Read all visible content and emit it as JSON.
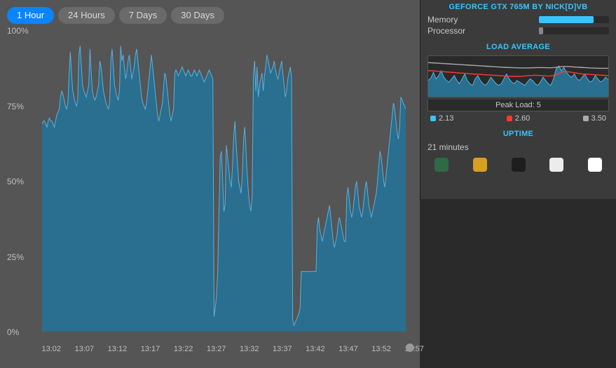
{
  "tabs": {
    "items": [
      "1 Hour",
      "24 Hours",
      "7 Days",
      "30 Days"
    ],
    "active_index": 0,
    "active_bg": "#0a84ff",
    "inactive_bg": "#6a6a6a"
  },
  "main_chart": {
    "type": "area",
    "ylim": [
      0,
      100
    ],
    "yticks": [
      0,
      25,
      50,
      75,
      100
    ],
    "ytick_labels": [
      "0%",
      "25%",
      "50%",
      "75%",
      "100%"
    ],
    "xtick_labels": [
      "13:02",
      "13:07",
      "13:12",
      "13:17",
      "13:22",
      "13:27",
      "13:32",
      "13:37",
      "13:42",
      "13:47",
      "13:52",
      "13:57"
    ],
    "line_color": "#5ab0e0",
    "fill_color": "#2a6f8f",
    "background_color": "#555555",
    "text_color": "#bfbfbf",
    "line_width": 1,
    "values": [
      69,
      70,
      70,
      69,
      68,
      70,
      71,
      70,
      70,
      69,
      68,
      70,
      72,
      73,
      74,
      78,
      80,
      79,
      77,
      75,
      74,
      76,
      85,
      93,
      86,
      80,
      78,
      76,
      75,
      77,
      92,
      95,
      88,
      82,
      80,
      79,
      78,
      80,
      82,
      94,
      86,
      80,
      78,
      77,
      78,
      80,
      82,
      90,
      88,
      84,
      80,
      78,
      76,
      75,
      74,
      76,
      90,
      94,
      88,
      82,
      80,
      78,
      77,
      80,
      95,
      90,
      92,
      88,
      84,
      86,
      90,
      92,
      88,
      84,
      86,
      88,
      92,
      94,
      90,
      86,
      82,
      78,
      76,
      75,
      74,
      76,
      80,
      84,
      88,
      92,
      88,
      84,
      80,
      76,
      72,
      70,
      72,
      74,
      76,
      82,
      86,
      84,
      80,
      76,
      72,
      70,
      72,
      74,
      86,
      87,
      86,
      85,
      86,
      87,
      88,
      87,
      86,
      85,
      86,
      87,
      86,
      85,
      85,
      86,
      87,
      86,
      85,
      86,
      87,
      86,
      85,
      84,
      83,
      84,
      85,
      86,
      87,
      86,
      85,
      84,
      5,
      8,
      12,
      20,
      40,
      58,
      60,
      50,
      40,
      42,
      62,
      58,
      54,
      50,
      48,
      55,
      65,
      70,
      62,
      56,
      50,
      48,
      46,
      52,
      64,
      68,
      60,
      52,
      46,
      42,
      40,
      45,
      85,
      90,
      80,
      88,
      78,
      82,
      84,
      86,
      80,
      85,
      88,
      92,
      90,
      88,
      86,
      87,
      88,
      90,
      87,
      85,
      84,
      86,
      88,
      90,
      86,
      82,
      78,
      80,
      84,
      86,
      88,
      85,
      4,
      2,
      3,
      4,
      5,
      6,
      8,
      20,
      20,
      20,
      20,
      20,
      20,
      20,
      20,
      20,
      20,
      20,
      20,
      20,
      35,
      38,
      34,
      32,
      30,
      32,
      34,
      36,
      38,
      40,
      42,
      38,
      34,
      30,
      28,
      30,
      32,
      36,
      38,
      36,
      34,
      32,
      30,
      30,
      45,
      48,
      44,
      40,
      38,
      40,
      44,
      48,
      50,
      46,
      42,
      40,
      38,
      40,
      44,
      48,
      50,
      46,
      42,
      40,
      38,
      40,
      42,
      44,
      46,
      50,
      55,
      60,
      58,
      54,
      50,
      48,
      52,
      56,
      60,
      64,
      68,
      72,
      76,
      74,
      70,
      66,
      64,
      68,
      78,
      77,
      76,
      75,
      74
    ]
  },
  "sidebar": {
    "gpu_header": "GEFORCE GTX 765M BY NICK[D]VB",
    "bars": {
      "memory": {
        "label": "Memory",
        "pct": 78,
        "color": "#36c5ff"
      },
      "processor": {
        "label": "Processor",
        "pct": 6,
        "color": "#888888"
      }
    },
    "load_section_title": "LOAD AVERAGE",
    "peak_load_label": "Peak Load: 5",
    "legend": [
      {
        "color": "#36c5ff",
        "value": "2.13"
      },
      {
        "color": "#ff3b30",
        "value": "2.60"
      },
      {
        "color": "#aaaaaa",
        "value": "3.50"
      }
    ],
    "uptime_title": "UPTIME",
    "uptime_value": "21 minutes",
    "load_chart": {
      "type": "area+lines",
      "background_color": "#2a2a2a",
      "ylim": [
        0,
        5
      ],
      "area_color": "#2a6f8f",
      "area_line_color": "#5ab0e0",
      "area_values": [
        2.0,
        2.3,
        3.0,
        2.2,
        2.6,
        3.2,
        2.4,
        2.0,
        1.8,
        2.2,
        2.6,
        2.0,
        1.6,
        2.2,
        2.8,
        2.0,
        1.6,
        1.4,
        2.2,
        2.6,
        2.0,
        1.6,
        1.4,
        1.8,
        2.4,
        2.0,
        1.6,
        1.4,
        1.6,
        2.2,
        2.8,
        2.2,
        1.8,
        1.6,
        2.0,
        1.8,
        1.6,
        1.4,
        1.8,
        2.2,
        2.0,
        1.6,
        1.4,
        1.8,
        2.4,
        2.0,
        1.6,
        1.4,
        2.2,
        3.4,
        3.8,
        3.2,
        3.6,
        3.0,
        2.6,
        2.4,
        2.8,
        2.2,
        2.0,
        2.4,
        2.8,
        2.2,
        1.8,
        2.0,
        2.6,
        2.2,
        1.8,
        2.0,
        2.4,
        2.1
      ],
      "red_line_color": "#ff3b30",
      "red_values": [
        3.2,
        3.2,
        3.18,
        3.15,
        3.12,
        3.1,
        3.08,
        3.05,
        3.02,
        3.0,
        2.98,
        2.95,
        2.92,
        2.9,
        2.88,
        2.85,
        2.82,
        2.8,
        2.78,
        2.76,
        2.74,
        2.72,
        2.7,
        2.68,
        2.66,
        2.64,
        2.62,
        2.6,
        2.58,
        2.56,
        2.54,
        2.52,
        2.5,
        2.5,
        2.5,
        2.5,
        2.52,
        2.55,
        2.58,
        2.6,
        2.62,
        2.64,
        2.62,
        2.6,
        2.58,
        2.56,
        2.55,
        2.56,
        2.6,
        2.7,
        2.85,
        3.0,
        3.1,
        3.1,
        3.05,
        3.0,
        2.95,
        2.9,
        2.85,
        2.8,
        2.78,
        2.76,
        2.74,
        2.72,
        2.7,
        2.68,
        2.66,
        2.64,
        2.62,
        2.6
      ],
      "grey_line_color": "#aaaaaa",
      "grey_values": [
        4.2,
        4.18,
        4.16,
        4.14,
        4.12,
        4.1,
        4.08,
        4.06,
        4.04,
        4.02,
        4.0,
        3.98,
        3.96,
        3.94,
        3.92,
        3.9,
        3.88,
        3.86,
        3.84,
        3.82,
        3.8,
        3.78,
        3.76,
        3.74,
        3.72,
        3.7,
        3.68,
        3.66,
        3.64,
        3.62,
        3.6,
        3.59,
        3.58,
        3.57,
        3.56,
        3.55,
        3.54,
        3.54,
        3.54,
        3.55,
        3.56,
        3.57,
        3.58,
        3.58,
        3.58,
        3.57,
        3.56,
        3.56,
        3.58,
        3.62,
        3.66,
        3.7,
        3.72,
        3.72,
        3.7,
        3.68,
        3.66,
        3.64,
        3.62,
        3.6,
        3.58,
        3.56,
        3.54,
        3.53,
        3.52,
        3.51,
        3.5,
        3.5,
        3.5,
        3.5
      ]
    },
    "dock_icons": [
      {
        "name": "istat-icon",
        "bg": "#2d6a45"
      },
      {
        "name": "wake-icon",
        "bg": "#d8a020"
      },
      {
        "name": "terminal-icon",
        "bg": "#1e1e1e"
      },
      {
        "name": "printer-icon",
        "bg": "#ececec"
      },
      {
        "name": "safari-icon",
        "bg": "#ffffff"
      }
    ]
  }
}
